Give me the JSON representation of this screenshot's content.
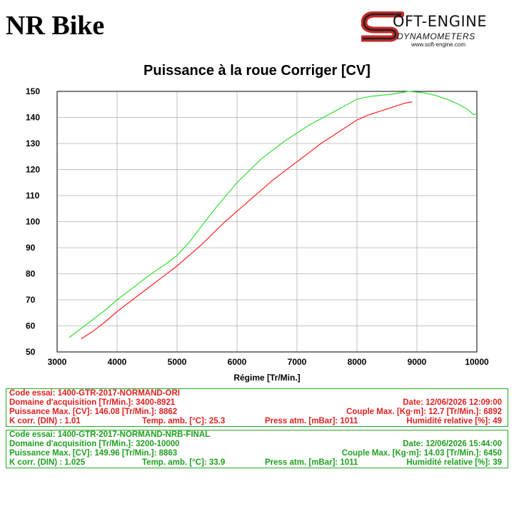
{
  "header": {
    "brand_title": "NR Bike",
    "logo_text": "OFT-ENGINE",
    "logo_sub": "DYNAMOMETERS",
    "logo_url": "www.soft-engine.com"
  },
  "chart_data": {
    "type": "line",
    "title": "Puissance à la roue Corriger [CV]",
    "xlabel": "Régime [Tr/Min.]",
    "ylabel": "",
    "xlim": [
      3000,
      10000
    ],
    "ylim": [
      50,
      150
    ],
    "x_ticks": [
      3000,
      4000,
      5000,
      6000,
      7000,
      8000,
      9000,
      10000
    ],
    "y_ticks": [
      50,
      60,
      70,
      80,
      90,
      100,
      110,
      120,
      130,
      140,
      150
    ],
    "grid": true,
    "series": [
      {
        "color": "#ff2020",
        "points": [
          [
            3400,
            55
          ],
          [
            3600,
            58
          ],
          [
            3800,
            61.5
          ],
          [
            4000,
            65.5
          ],
          [
            4200,
            69
          ],
          [
            4400,
            72.5
          ],
          [
            4600,
            76
          ],
          [
            4800,
            79.5
          ],
          [
            5000,
            83
          ],
          [
            5200,
            87
          ],
          [
            5400,
            91
          ],
          [
            5600,
            95.5
          ],
          [
            5800,
            100
          ],
          [
            6000,
            104
          ],
          [
            6200,
            108
          ],
          [
            6400,
            112
          ],
          [
            6600,
            116
          ],
          [
            6800,
            119.5
          ],
          [
            7000,
            123
          ],
          [
            7200,
            126.5
          ],
          [
            7400,
            130
          ],
          [
            7600,
            133
          ],
          [
            7800,
            136
          ],
          [
            8000,
            139
          ],
          [
            8200,
            141
          ],
          [
            8400,
            142.5
          ],
          [
            8600,
            144
          ],
          [
            8800,
            145.5
          ],
          [
            8921,
            146
          ]
        ]
      },
      {
        "color": "#33dd33",
        "points": [
          [
            3200,
            55.5
          ],
          [
            3400,
            59
          ],
          [
            3600,
            62.5
          ],
          [
            3800,
            66
          ],
          [
            4000,
            70
          ],
          [
            4200,
            73.5
          ],
          [
            4400,
            77
          ],
          [
            4600,
            80.5
          ],
          [
            4800,
            83.5
          ],
          [
            5000,
            87
          ],
          [
            5200,
            92
          ],
          [
            5400,
            98
          ],
          [
            5600,
            104
          ],
          [
            5800,
            109.5
          ],
          [
            6000,
            115
          ],
          [
            6200,
            119.5
          ],
          [
            6400,
            124
          ],
          [
            6600,
            127.5
          ],
          [
            6800,
            131
          ],
          [
            7000,
            134
          ],
          [
            7200,
            137
          ],
          [
            7400,
            139.5
          ],
          [
            7600,
            142
          ],
          [
            7800,
            144.5
          ],
          [
            8000,
            147
          ],
          [
            8200,
            148
          ],
          [
            8400,
            148.5
          ],
          [
            8600,
            149
          ],
          [
            8863,
            150
          ],
          [
            9100,
            149.5
          ],
          [
            9300,
            148.5
          ],
          [
            9500,
            147
          ],
          [
            9700,
            145
          ],
          [
            9850,
            143
          ],
          [
            9950,
            141
          ],
          [
            10000,
            141.5
          ]
        ]
      }
    ]
  },
  "tests": [
    {
      "code": "Code essai: 1400-GTR-2017-NORMAND-ORI",
      "domain": "Domaine d'acquisition [Tr/Min.]: 3400-8921",
      "date": "Date: 12/06/2026   12:09:00",
      "power": "Puissance Max. [CV]: 146.08   [Tr/Min.]: 8862",
      "torque": "Couple Max. [Kg·m]: 12.7   [Tr/Min.]: 6892",
      "kcorr": "K corr. (DIN) : 1.01",
      "temp": "Temp. amb. [°C]: 25.3",
      "press": "Press atm. [mBar]: 1011",
      "humid": "Humidité relative [%]: 49"
    },
    {
      "code": "Code essai: 1400-GTR-2017-NORMAND-NRB-FINAL",
      "domain": "Domaine d'acquisition [Tr/Min.]: 3200-10000",
      "date": "Date: 12/06/2026   15:44:00",
      "power": "Puissance Max. [CV]: 149.96   [Tr/Min.]: 8863",
      "torque": "Couple Max. [Kg·m]: 14.03   [Tr/Min.]: 6450",
      "kcorr": "K corr. (DIN) : 1.025",
      "temp": "Temp. amb. [°C]: 33.9",
      "press": "Press atm. [mBar]: 1011",
      "humid": "Humidité relative [%]: 39"
    }
  ]
}
